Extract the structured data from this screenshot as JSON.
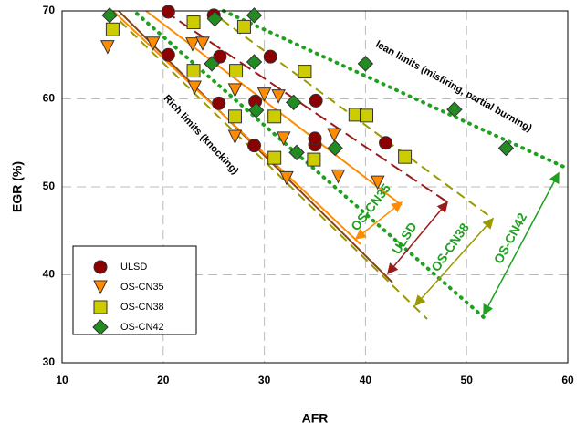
{
  "chart_data": {
    "type": "scatter",
    "x_label": "AFR",
    "y_label": "EGR (%)",
    "xlim": [
      10,
      60
    ],
    "xticks": [
      10,
      20,
      30,
      40,
      50,
      60
    ],
    "ylim": [
      30,
      70
    ],
    "yticks": [
      30,
      40,
      50,
      60,
      70
    ],
    "grid": true,
    "legend": "lower left",
    "series": [
      {
        "name": "ULSD",
        "color": "#8b0000",
        "marker": "circle",
        "x": [
          20.5,
          25,
          20.5,
          25.6,
          30.6,
          25.5,
          29.1,
          35.1,
          29,
          35,
          35,
          42
        ],
        "values": [
          69.9,
          69.5,
          65,
          64.8,
          64.8,
          59.5,
          59.7,
          59.8,
          54.7,
          54.8,
          55.5,
          55
        ]
      },
      {
        "name": "OS-CN35",
        "color": "#ff8c00",
        "marker": "triangle",
        "x": [
          14.5,
          19,
          22.9,
          23.9,
          23.1,
          27.1,
          30,
          31.4,
          27.1,
          31.9,
          32.2,
          36.9,
          37.3,
          41.2
        ],
        "values": [
          65.9,
          66.3,
          66.2,
          66.3,
          61.3,
          61,
          60.5,
          60.3,
          55.7,
          55.5,
          51,
          55.9,
          51.2,
          50.5
        ]
      },
      {
        "name": "OS-CN38",
        "color": "#cccc00",
        "marker": "square",
        "x": [
          15,
          23,
          28,
          23,
          27.2,
          34,
          31,
          27.1,
          39,
          40.1,
          31,
          34.9,
          43.9
        ],
        "values": [
          67.9,
          68.7,
          68.2,
          63.2,
          63.2,
          63.1,
          58,
          58,
          58.2,
          58.1,
          53.3,
          53.1,
          53.4
        ]
      },
      {
        "name": "OS-CN42",
        "color": "#228b22",
        "marker": "diamond",
        "x": [
          14.7,
          25.1,
          29,
          24.8,
          29,
          29.2,
          32.9,
          33.2,
          37,
          40,
          48.8,
          53.9
        ],
        "values": [
          69.5,
          69.1,
          69.5,
          64,
          64.2,
          58.7,
          59.6,
          53.9,
          54.4,
          64,
          58.8,
          54.4
        ]
      }
    ],
    "annotations": [
      "lean limits (misfiring, partial burning)",
      "Rich limits (knocking)",
      "OS-CN35",
      "ULSD",
      "OS-CN38",
      "OS-CN42"
    ]
  }
}
